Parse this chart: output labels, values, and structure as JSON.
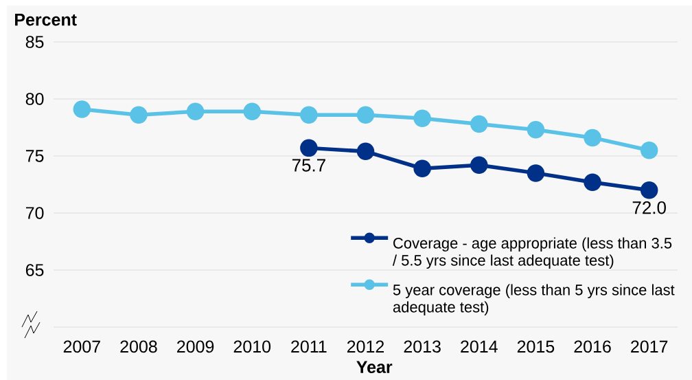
{
  "chart_data": {
    "type": "line",
    "ylabel": "Percent",
    "xlabel": "Year",
    "categories": [
      "2007",
      "2008",
      "2009",
      "2010",
      "2011",
      "2012",
      "2013",
      "2014",
      "2015",
      "2016",
      "2017"
    ],
    "series": [
      {
        "name": "Coverage - age appropriate (less than 3.5 / 5.5 yrs since last adequate test)",
        "color": "#003087",
        "values": [
          null,
          null,
          null,
          null,
          75.7,
          75.4,
          73.9,
          74.2,
          73.5,
          72.7,
          72.0
        ],
        "value_labels": [
          null,
          null,
          null,
          null,
          "75.7",
          null,
          null,
          null,
          null,
          null,
          "72.0"
        ]
      },
      {
        "name": "5 year coverage (less than 5 yrs since last adequate test)",
        "color": "#5bc2e7",
        "values": [
          79.1,
          78.6,
          78.9,
          78.9,
          78.6,
          78.6,
          78.3,
          77.8,
          77.3,
          76.6,
          75.5
        ]
      }
    ],
    "ylim": [
      60,
      85
    ],
    "yticks": [
      {
        "value": 60,
        "label": null
      },
      65,
      70,
      75,
      80,
      85
    ],
    "grid": "y",
    "legend": "bottom right",
    "marker": "circle",
    "line_style": "solid"
  }
}
